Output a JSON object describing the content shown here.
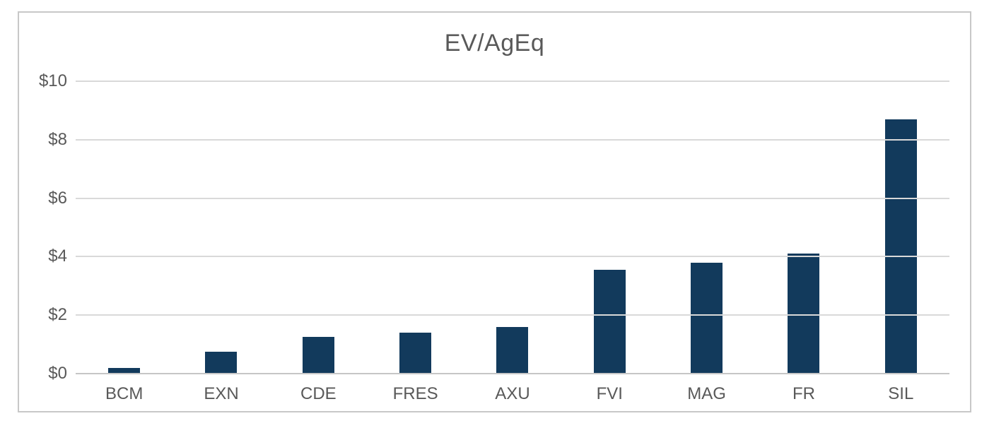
{
  "chart_data": {
    "type": "bar",
    "title": "EV/AgEq",
    "categories": [
      "BCM",
      "EXN",
      "CDE",
      "FRES",
      "AXU",
      "FVI",
      "MAG",
      "FR",
      "SIL"
    ],
    "values": [
      0.2,
      0.75,
      1.25,
      1.4,
      1.6,
      3.55,
      3.8,
      4.1,
      8.7
    ],
    "xlabel": "",
    "ylabel": "",
    "ylim": [
      0,
      10
    ],
    "ytick_step": 2,
    "ytick_labels": [
      "$0",
      "$2",
      "$4",
      "$6",
      "$8",
      "$10"
    ],
    "grid": true,
    "legend": false,
    "colors": {
      "bar": "#123a5c",
      "labels": "#595959",
      "gridline": "#d9d9d9",
      "axis_line": "#c6c6c6",
      "frame_border": "#c8c8c8"
    }
  }
}
